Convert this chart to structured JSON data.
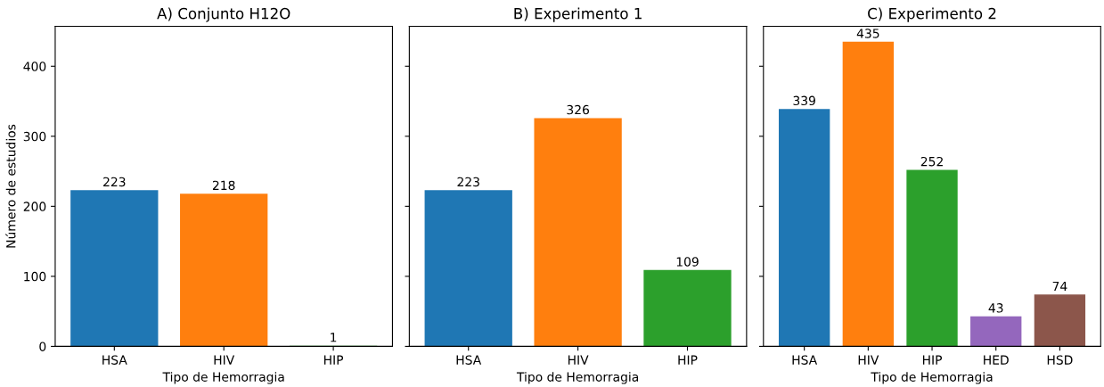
{
  "chart_data": [
    {
      "type": "bar",
      "title": "A) Conjunto H12O",
      "xlabel": "Tipo de Hemorragia",
      "ylabel": "Número de estudios",
      "categories": [
        "HSA",
        "HIV",
        "HIP"
      ],
      "values": [
        223,
        218,
        1
      ],
      "colors": [
        "#1f77b4",
        "#ff7f0e",
        "#2ca02c"
      ],
      "ylim": [
        0,
        457
      ],
      "yticks": [
        0,
        100,
        200,
        300,
        400
      ],
      "data_labels": true,
      "grid": false,
      "legend": false
    },
    {
      "type": "bar",
      "title": "B) Experimento 1",
      "xlabel": "Tipo de Hemorragia",
      "categories": [
        "HSA",
        "HIV",
        "HIP"
      ],
      "values": [
        223,
        326,
        109
      ],
      "colors": [
        "#1f77b4",
        "#ff7f0e",
        "#2ca02c"
      ],
      "ylim": [
        0,
        457
      ],
      "yticks": [
        0,
        100,
        200,
        300,
        400
      ],
      "tick_labels": "x",
      "data_labels": true,
      "grid": false,
      "legend": false
    },
    {
      "type": "bar",
      "title": "C) Experimento 2",
      "xlabel": "Tipo de Hemorragia",
      "categories": [
        "HSA",
        "HIV",
        "HIP",
        "HED",
        "HSD"
      ],
      "values": [
        339,
        435,
        252,
        43,
        74
      ],
      "colors": [
        "#1f77b4",
        "#ff7f0e",
        "#2ca02c",
        "#9467bd",
        "#8c564b"
      ],
      "ylim": [
        0,
        457
      ],
      "yticks": [
        0,
        100,
        200,
        300,
        400
      ],
      "tick_labels": "x",
      "data_labels": true,
      "grid": false,
      "legend": false
    }
  ]
}
